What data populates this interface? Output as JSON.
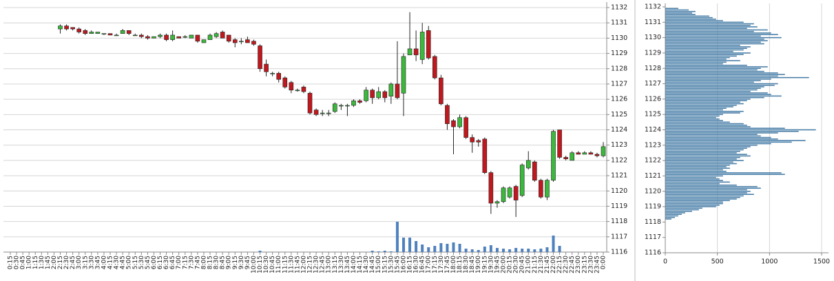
{
  "chart_data": [
    {
      "type": "candlestick",
      "categories": [
        "0:15",
        "0:30",
        "0:45",
        "1:00",
        "1:15",
        "1:30",
        "1:45",
        "2:00",
        "2:15",
        "2:30",
        "2:45",
        "3:00",
        "3:15",
        "3:30",
        "3:45",
        "4:00",
        "4:15",
        "4:30",
        "4:45",
        "5:00",
        "5:15",
        "5:30",
        "5:45",
        "6:00",
        "6:15",
        "6:30",
        "6:45",
        "7:00",
        "7:15",
        "7:30",
        "7:45",
        "8:00",
        "8:15",
        "8:30",
        "8:45",
        "9:00",
        "9:15",
        "9:30",
        "9:45",
        "10:00",
        "10:15",
        "10:30",
        "10:45",
        "11:00",
        "11:15",
        "11:30",
        "11:45",
        "12:00",
        "12:15",
        "12:30",
        "12:45",
        "13:00",
        "13:15",
        "13:30",
        "13:45",
        "14:00",
        "14:15",
        "14:30",
        "14:45",
        "15:00",
        "15:15",
        "15:30",
        "15:45",
        "16:00",
        "16:15",
        "16:30",
        "16:45",
        "17:00",
        "17:15",
        "17:30",
        "17:45",
        "18:00",
        "18:15",
        "18:30",
        "18:45",
        "19:00",
        "19:15",
        "19:30",
        "19:45",
        "20:00",
        "20:15",
        "20:30",
        "20:45",
        "21:00",
        "21:15",
        "21:30",
        "21:45",
        "22:00",
        "22:15",
        "22:30",
        "22:45",
        "23:00",
        "23:15",
        "23:30",
        "23:45",
        "0:00"
      ],
      "open": [
        null,
        null,
        null,
        null,
        null,
        null,
        null,
        null,
        1130.6,
        1130.8,
        1130.7,
        1130.6,
        1130.5,
        1130.3,
        1130.3,
        1130.3,
        1130.3,
        1130.2,
        1130.3,
        1130.5,
        1130.2,
        1130.2,
        1130.1,
        1130.0,
        1130.1,
        1130.2,
        1129.9,
        1130.1,
        1130.1,
        1130.0,
        1130.2,
        1129.7,
        1129.9,
        1130.1,
        1130.4,
        1130.2,
        1129.9,
        1129.8,
        1129.9,
        1129.8,
        1129.5,
        1128.3,
        1127.7,
        1127.7,
        1127.4,
        1127.1,
        1126.6,
        1126.8,
        1126.4,
        1125.3,
        1125.1,
        1125.1,
        1125.2,
        1125.6,
        1125.6,
        1125.6,
        1125.9,
        1125.9,
        1126.6,
        1126.1,
        1126.5,
        1126.2,
        1127.0,
        1126.4,
        1128.9,
        1129.3,
        1128.6,
        1130.5,
        1128.8,
        1127.4,
        1125.6,
        1124.6,
        1124.2,
        1124.8,
        1123.5,
        1123.3,
        1123.4,
        1121.2,
        1119.2,
        1119.3,
        1119.6,
        1120.3,
        1119.7,
        1121.5,
        1121.9,
        1120.7,
        1119.6,
        1120.7,
        1124.0,
        1122.2,
        1122.0,
        1122.5,
        1122.4,
        1122.5,
        1122.4,
        1122.3
      ],
      "high": [
        null,
        null,
        null,
        null,
        null,
        null,
        null,
        null,
        1130.9,
        1130.9,
        1130.7,
        1130.7,
        1130.6,
        1130.5,
        1130.4,
        1130.3,
        1130.3,
        1130.3,
        1130.6,
        1130.5,
        1130.3,
        1130.3,
        1130.2,
        1130.1,
        1130.3,
        1130.3,
        1130.5,
        1130.1,
        1130.2,
        1130.2,
        1130.2,
        1129.9,
        1130.3,
        1130.4,
        1130.5,
        1130.2,
        1130.0,
        1130.0,
        1130.1,
        1129.9,
        1129.6,
        1128.6,
        1127.8,
        1127.8,
        1127.5,
        1127.2,
        1126.7,
        1126.9,
        1126.5,
        1125.4,
        1125.3,
        1125.3,
        1125.8,
        1125.7,
        1125.7,
        1126.0,
        1126.0,
        1126.8,
        1126.7,
        1126.8,
        1126.6,
        1127.1,
        1129.8,
        1129.0,
        1131.7,
        1130.5,
        1131.0,
        1130.8,
        1128.9,
        1127.6,
        1125.7,
        1124.7,
        1125.0,
        1124.9,
        1123.7,
        1123.4,
        1123.5,
        1121.3,
        1119.4,
        1120.3,
        1120.3,
        1120.4,
        1121.8,
        1122.6,
        1122.0,
        1120.8,
        1120.8,
        1124.0,
        1124.0,
        1122.3,
        1122.6,
        1122.6,
        1122.6,
        1122.6,
        1122.5,
        1123.2
      ],
      "low": [
        null,
        null,
        null,
        null,
        null,
        null,
        null,
        null,
        1130.3,
        1130.5,
        1130.5,
        1130.3,
        1130.2,
        1130.3,
        1130.3,
        1130.2,
        1130.2,
        1130.2,
        1130.3,
        1130.2,
        1130.2,
        1130.0,
        1129.9,
        1130.0,
        1130.0,
        1129.8,
        1129.8,
        1130.0,
        1130.0,
        1130.0,
        1129.7,
        1129.7,
        1129.9,
        1130.0,
        1130.0,
        1129.7,
        1129.4,
        1129.6,
        1129.7,
        1129.5,
        1127.8,
        1127.5,
        1127.5,
        1127.1,
        1126.7,
        1126.4,
        1126.5,
        1126.4,
        1125.0,
        1124.9,
        1124.9,
        1124.9,
        1125.1,
        1125.3,
        1124.9,
        1125.5,
        1125.7,
        1125.8,
        1125.7,
        1126.0,
        1125.8,
        1125.7,
        1126.0,
        1124.9,
        1128.9,
        1128.5,
        1128.3,
        1128.6,
        1127.3,
        1125.6,
        1124.0,
        1122.4,
        1124.1,
        1123.4,
        1122.5,
        1122.9,
        1121.1,
        1118.5,
        1118.9,
        1119.2,
        1119.5,
        1118.3,
        1119.6,
        1121.4,
        1120.6,
        1119.5,
        1119.4,
        1120.6,
        1122.1,
        1122.0,
        1122.0,
        1122.4,
        1122.4,
        1122.4,
        1122.2,
        1122.2
      ],
      "close": [
        null,
        null,
        null,
        null,
        null,
        null,
        null,
        null,
        1130.8,
        1130.6,
        1130.6,
        1130.4,
        1130.3,
        1130.4,
        1130.4,
        1130.3,
        1130.2,
        1130.2,
        1130.5,
        1130.3,
        1130.2,
        1130.1,
        1130.0,
        1130.1,
        1130.2,
        1129.9,
        1130.2,
        1130.0,
        1130.1,
        1130.2,
        1129.8,
        1129.9,
        1130.2,
        1130.3,
        1130.0,
        1129.8,
        1129.7,
        1129.8,
        1129.7,
        1129.6,
        1128.0,
        1127.8,
        1127.7,
        1127.3,
        1126.8,
        1126.6,
        1126.6,
        1126.5,
        1125.1,
        1125.0,
        1125.1,
        1125.1,
        1125.7,
        1125.6,
        1125.6,
        1125.9,
        1125.8,
        1126.6,
        1126.1,
        1126.5,
        1126.1,
        1127.0,
        1126.1,
        1128.8,
        1129.3,
        1128.9,
        1130.4,
        1128.7,
        1127.4,
        1125.7,
        1124.4,
        1124.2,
        1124.8,
        1123.5,
        1123.2,
        1123.2,
        1121.2,
        1119.2,
        1119.3,
        1120.2,
        1120.2,
        1119.4,
        1121.7,
        1122.0,
        1120.7,
        1119.6,
        1120.7,
        1123.9,
        1122.2,
        1122.1,
        1122.5,
        1122.4,
        1122.5,
        1122.4,
        1122.3,
        1122.9
      ],
      "volume": [
        null,
        null,
        null,
        null,
        null,
        null,
        null,
        null,
        0,
        0,
        0,
        0,
        0,
        0,
        0,
        0,
        0,
        0,
        0,
        0,
        0,
        0,
        0,
        0,
        0,
        0,
        0,
        0,
        0,
        0,
        0,
        0,
        0,
        0,
        0,
        0,
        0,
        0,
        0,
        0,
        2,
        0,
        0,
        0,
        0,
        0,
        0,
        0,
        0,
        0,
        0,
        0,
        0,
        0,
        0,
        0,
        0,
        0,
        2,
        1,
        2,
        1,
        44,
        21,
        21,
        16,
        11,
        7,
        9,
        13,
        12,
        14,
        12,
        5,
        4,
        3,
        8,
        10,
        6,
        5,
        4,
        6,
        5,
        5,
        4,
        5,
        7,
        24,
        9,
        0,
        0,
        0,
        0,
        0,
        0,
        0
      ],
      "up_color": "#3cb83c",
      "down_color": "#c0181e",
      "volume_color": "#4f81bd",
      "ylim": [
        1116,
        1132
      ],
      "yticks": [
        1116,
        1117,
        1118,
        1119,
        1120,
        1121,
        1122,
        1123,
        1124,
        1125,
        1126,
        1127,
        1128,
        1129,
        1130,
        1131,
        1132
      ],
      "grid": true
    },
    {
      "type": "hbar",
      "prices": [
        1131.9,
        1131.8,
        1131.7,
        1131.6,
        1131.5,
        1131.4,
        1131.3,
        1131.2,
        1131.1,
        1131.0,
        1130.9,
        1130.8,
        1130.7,
        1130.6,
        1130.5,
        1130.4,
        1130.3,
        1130.2,
        1130.1,
        1130.0,
        1129.9,
        1129.8,
        1129.7,
        1129.6,
        1129.5,
        1129.4,
        1129.3,
        1129.2,
        1129.1,
        1129.0,
        1128.9,
        1128.8,
        1128.7,
        1128.6,
        1128.5,
        1128.4,
        1128.3,
        1128.2,
        1128.1,
        1128.0,
        1127.9,
        1127.8,
        1127.7,
        1127.6,
        1127.5,
        1127.4,
        1127.3,
        1127.2,
        1127.1,
        1127.0,
        1126.9,
        1126.8,
        1126.7,
        1126.6,
        1126.5,
        1126.4,
        1126.3,
        1126.2,
        1126.1,
        1126.0,
        1125.9,
        1125.8,
        1125.7,
        1125.6,
        1125.5,
        1125.4,
        1125.3,
        1125.2,
        1125.1,
        1125.0,
        1124.9,
        1124.8,
        1124.7,
        1124.6,
        1124.5,
        1124.4,
        1124.3,
        1124.2,
        1124.1,
        1124.0,
        1123.9,
        1123.8,
        1123.7,
        1123.6,
        1123.5,
        1123.4,
        1123.3,
        1123.2,
        1123.1,
        1123.0,
        1122.9,
        1122.8,
        1122.7,
        1122.6,
        1122.5,
        1122.4,
        1122.3,
        1122.2,
        1122.1,
        1122.0,
        1121.9,
        1121.8,
        1121.7,
        1121.6,
        1121.5,
        1121.4,
        1121.3,
        1121.2,
        1121.1,
        1121.0,
        1120.9,
        1120.8,
        1120.7,
        1120.6,
        1120.5,
        1120.4,
        1120.3,
        1120.2,
        1120.1,
        1120.0,
        1119.9,
        1119.8,
        1119.7,
        1119.6,
        1119.5,
        1119.4,
        1119.3,
        1119.2,
        1119.1,
        1119.0,
        1118.9,
        1118.8,
        1118.7,
        1118.6,
        1118.5,
        1118.4,
        1118.3,
        1118.2
      ],
      "values": [
        125,
        225,
        290,
        258,
        290,
        422,
        455,
        488,
        554,
        752,
        851,
        818,
        884,
        785,
        983,
        851,
        1016,
        1082,
        917,
        1115,
        950,
        983,
        917,
        950,
        719,
        818,
        785,
        752,
        653,
        818,
        752,
        686,
        620,
        587,
        719,
        587,
        554,
        785,
        983,
        917,
        884,
        950,
        1082,
        1148,
        1082,
        1379,
        1016,
        917,
        851,
        1082,
        1049,
        950,
        917,
        884,
        818,
        983,
        1016,
        1115,
        950,
        818,
        785,
        719,
        752,
        686,
        653,
        587,
        554,
        752,
        719,
        554,
        521,
        488,
        521,
        554,
        620,
        752,
        785,
        818,
        1148,
        1445,
        1280,
        1082,
        884,
        917,
        1016,
        1082,
        1346,
        1214,
        1016,
        884,
        818,
        785,
        752,
        719,
        686,
        785,
        818,
        719,
        686,
        752,
        653,
        686,
        620,
        587,
        620,
        554,
        587,
        1115,
        1148,
        554,
        488,
        521,
        554,
        620,
        521,
        686,
        884,
        917,
        785,
        818,
        785,
        851,
        752,
        719,
        686,
        620,
        554,
        554,
        521,
        488,
        356,
        323,
        257,
        191,
        158,
        125,
        92,
        59
      ],
      "color": "#4a7fa8",
      "ylim": [
        1116,
        1132
      ],
      "yticks": [
        1116,
        1117,
        1118,
        1119,
        1120,
        1121,
        1122,
        1123,
        1124,
        1125,
        1126,
        1127,
        1128,
        1129,
        1130,
        1131,
        1132
      ],
      "xlim": [
        0,
        1500
      ],
      "xticks": [
        0,
        500,
        1000,
        1500
      ],
      "grid": true
    }
  ]
}
